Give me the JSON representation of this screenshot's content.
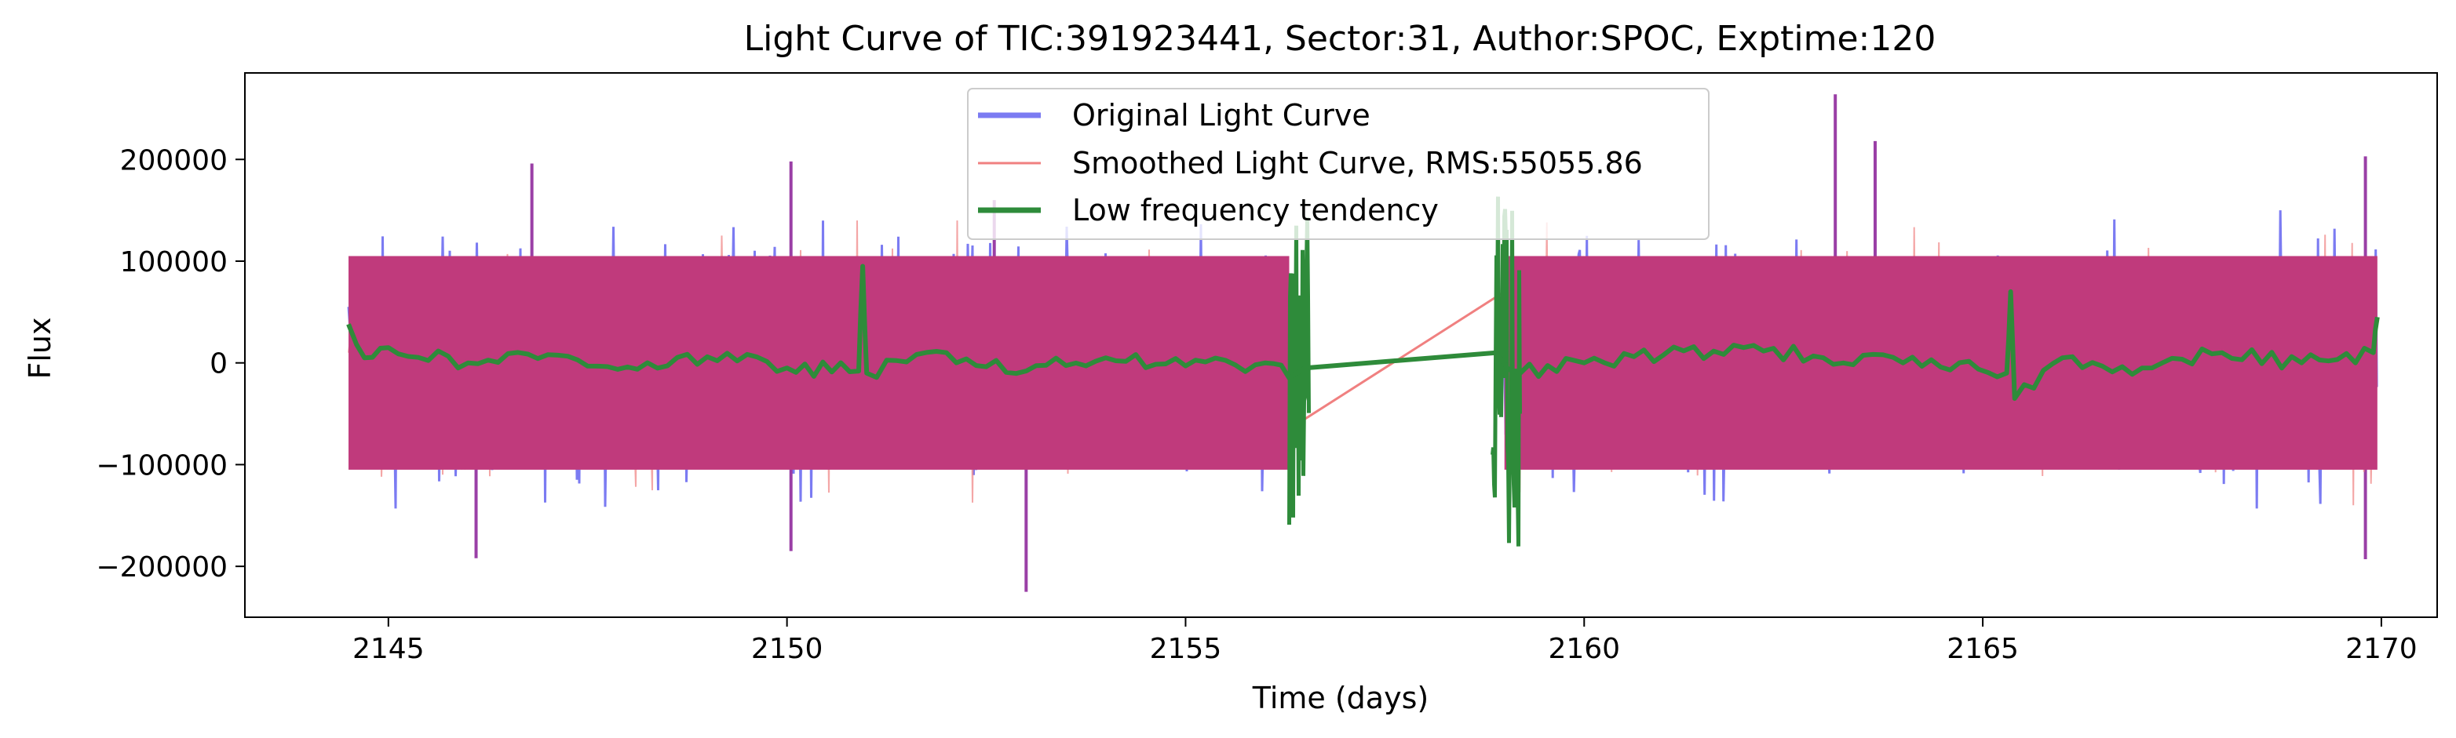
{
  "chart_data": {
    "type": "line",
    "title": "Light Curve of TIC:391923441, Sector:31, Author:SPOC, Exptime:120",
    "xlabel": "Time (days)",
    "ylabel": "Flux",
    "xlim": [
      2143.2,
      2170.7
    ],
    "ylim": [
      -250000,
      285000
    ],
    "grid": false,
    "legend_position": "top-center",
    "x_ticks": [
      2145,
      2150,
      2155,
      2160,
      2165,
      2170
    ],
    "x_tick_labels": [
      "2145",
      "2150",
      "2155",
      "2160",
      "2165",
      "2170"
    ],
    "y_ticks": [
      -200000,
      -100000,
      0,
      100000,
      200000
    ],
    "y_tick_labels": [
      "−200000",
      "−100000",
      "0",
      "100000",
      "200000"
    ],
    "segments": [
      [
        2144.5,
        2156.3
      ],
      [
        2159.0,
        2169.95
      ]
    ],
    "outliers": [
      {
        "x": 2146.8,
        "y": 196000
      },
      {
        "x": 2150.05,
        "y": 198000
      },
      {
        "x": 2163.15,
        "y": 264000
      },
      {
        "x": 2163.65,
        "y": 218000
      },
      {
        "x": 2169.8,
        "y": 203000
      },
      {
        "x": 2153.0,
        "y": -225000
      },
      {
        "x": 2146.1,
        "y": -192000
      },
      {
        "x": 2169.8,
        "y": -193000
      },
      {
        "x": 2150.05,
        "y": -185000
      },
      {
        "x": 2152.6,
        "y": 160000
      }
    ],
    "series": [
      {
        "name": "Original Light Curve",
        "color": "#7b7bf2",
        "style": "noisy band",
        "amplitude": [
          -150000,
          150000
        ]
      },
      {
        "name": "Smoothed Light Curve, RMS:55055.86",
        "color": "#f08080",
        "style": "noisy band",
        "amplitude": [
          -140000,
          140000
        ],
        "gap_line": [
          {
            "x": 2156.3,
            "y": -65000
          },
          {
            "x": 2159.0,
            "y": 70000
          }
        ]
      },
      {
        "name": "Low frequency tendency",
        "color": "#2e8b3a",
        "style": "trend",
        "points": [
          {
            "x": 2144.5,
            "y": 38000
          },
          {
            "x": 2144.7,
            "y": 5000
          },
          {
            "x": 2145.0,
            "y": 15000
          },
          {
            "x": 2146.0,
            "y": 0
          },
          {
            "x": 2147.0,
            "y": 8000
          },
          {
            "x": 2148.0,
            "y": -4000
          },
          {
            "x": 2149.0,
            "y": 6000
          },
          {
            "x": 2150.0,
            "y": -5000
          },
          {
            "x": 2150.9,
            "y": -8000
          },
          {
            "x": 2150.95,
            "y": 95000
          },
          {
            "x": 2151.0,
            "y": -10000
          },
          {
            "x": 2152.0,
            "y": 10000
          },
          {
            "x": 2153.0,
            "y": -8000
          },
          {
            "x": 2154.0,
            "y": 5000
          },
          {
            "x": 2155.0,
            "y": -3000
          },
          {
            "x": 2156.0,
            "y": 0
          },
          {
            "x": 2156.3,
            "y": -15000
          },
          {
            "x": 2156.5,
            "y": -5000
          },
          {
            "x": 2158.9,
            "y": 10000
          },
          {
            "x": 2159.2,
            "y": -10000
          },
          {
            "x": 2160.0,
            "y": 0
          },
          {
            "x": 2161.0,
            "y": 8000
          },
          {
            "x": 2162.0,
            "y": 15000
          },
          {
            "x": 2163.0,
            "y": 5000
          },
          {
            "x": 2164.0,
            "y": 0
          },
          {
            "x": 2165.3,
            "y": -10000
          },
          {
            "x": 2165.35,
            "y": 70000
          },
          {
            "x": 2165.4,
            "y": -35000
          },
          {
            "x": 2166.0,
            "y": 5000
          },
          {
            "x": 2167.0,
            "y": -5000
          },
          {
            "x": 2168.0,
            "y": 10000
          },
          {
            "x": 2169.0,
            "y": 0
          },
          {
            "x": 2169.9,
            "y": 10000
          },
          {
            "x": 2169.95,
            "y": 45000
          }
        ],
        "gap_edge_bursts": [
          {
            "x_from": 2156.3,
            "x_to": 2156.55,
            "y_min": -160000,
            "y_max": 165000
          },
          {
            "x_from": 2158.85,
            "x_to": 2159.2,
            "y_min": -182000,
            "y_max": 165000
          }
        ]
      }
    ]
  }
}
